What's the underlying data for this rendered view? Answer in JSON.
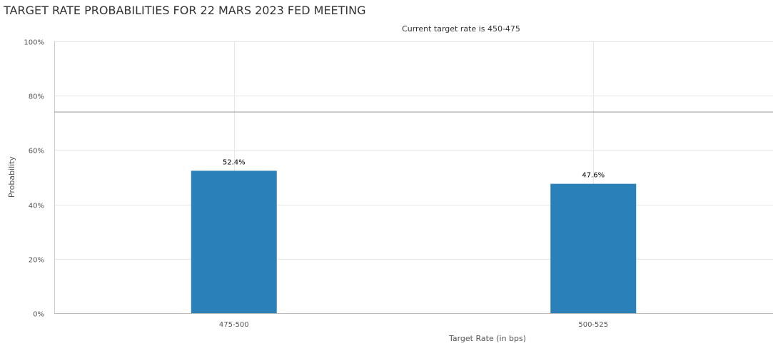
{
  "title": "TARGET RATE PROBABILITIES FOR 22 MARS 2023 FED MEETING",
  "subtitle": "Current target rate is 450-475",
  "chart_data": {
    "type": "bar",
    "title": "TARGET RATE PROBABILITIES FOR 22 MARS 2023 FED MEETING",
    "subtitle": "Current target rate is 450-475",
    "categories": [
      "475-500",
      "500-525"
    ],
    "values": [
      52.4,
      47.6
    ],
    "value_labels": [
      "52.4%",
      "47.6%"
    ],
    "xlabel": "Target Rate (in bps)",
    "ylabel": "Probability",
    "ylim": [
      0,
      100
    ],
    "yticks": [
      0,
      20,
      40,
      60,
      80,
      100
    ],
    "ytick_labels": [
      "0%",
      "20%",
      "40%",
      "60%",
      "80%",
      "100%"
    ],
    "grid": true,
    "bar_color": "#2a80b9"
  }
}
